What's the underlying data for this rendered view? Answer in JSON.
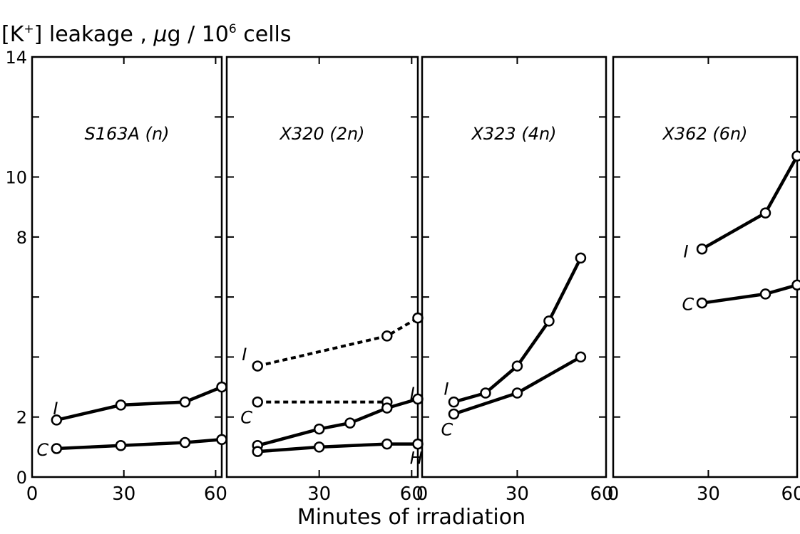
{
  "chart_data": {
    "type": "line",
    "title": "",
    "ylabel": {
      "prefix": "[K",
      "superscript": "+",
      "middle": "] leakage , ",
      "mu": "μ",
      "unit": "g / 10",
      "exp": "6",
      "suffix": " cells"
    },
    "xlabel": "Minutes of irradiation",
    "ylim": [
      0,
      14
    ],
    "yticks": [
      "0",
      "2",
      "",
      "",
      "8",
      "10",
      "",
      "14"
    ],
    "ytick_values": [
      0,
      2,
      4,
      6,
      8,
      10,
      12,
      14
    ],
    "grid": false,
    "axis_color": "#000000",
    "line_color": "#000000",
    "panels": [
      {
        "title": "S163A (n)",
        "xlim": [
          0,
          62
        ],
        "xticks": [
          "0",
          "30",
          "60"
        ],
        "xtick_values": [
          0,
          30,
          60
        ],
        "series": [
          {
            "name": "I",
            "style": "solid",
            "x": [
              8,
              29,
              50,
              62
            ],
            "y": [
              1.9,
              2.4,
              2.5,
              3.0
            ]
          },
          {
            "name": "C",
            "style": "solid",
            "x": [
              8,
              29,
              50,
              62
            ],
            "y": [
              0.95,
              1.05,
              1.15,
              1.25
            ]
          }
        ]
      },
      {
        "title": "X320 (2n)",
        "xlim": [
          0,
          62
        ],
        "xticks": [
          "",
          "30",
          "60"
        ],
        "xtick_values": [
          0,
          30,
          60
        ],
        "series": [
          {
            "name": "I",
            "style": "dashed",
            "x": [
              10,
              52,
              62
            ],
            "y": [
              3.7,
              4.7,
              5.3
            ]
          },
          {
            "name": "C",
            "style": "dashed",
            "x": [
              10,
              52
            ],
            "y": [
              2.5,
              2.5
            ]
          },
          {
            "name": "L",
            "style": "solid",
            "x": [
              10,
              30,
              40,
              52,
              62
            ],
            "y": [
              1.05,
              1.6,
              1.8,
              2.3,
              2.6
            ]
          },
          {
            "name": "H",
            "style": "solid",
            "x": [
              10,
              30,
              52,
              62
            ],
            "y": [
              0.85,
              1.0,
              1.1,
              1.1
            ]
          }
        ]
      },
      {
        "title": "X323 (4n)",
        "xlim": [
          0,
          58
        ],
        "xticks": [
          "0",
          "30",
          "60"
        ],
        "xtick_values": [
          0,
          30,
          60
        ],
        "series": [
          {
            "name": "I",
            "style": "solid",
            "x": [
              10,
              20,
              30,
              40,
              50
            ],
            "y": [
              2.5,
              2.8,
              3.7,
              5.2,
              7.3
            ]
          },
          {
            "name": "C",
            "style": "solid",
            "x": [
              10,
              30,
              50
            ],
            "y": [
              2.1,
              2.8,
              4.0
            ]
          }
        ]
      },
      {
        "title": "X362 (6n)",
        "xlim": [
          0,
          58
        ],
        "xticks": [
          "0",
          "30",
          "60"
        ],
        "xtick_values": [
          0,
          30,
          60
        ],
        "series": [
          {
            "name": "I",
            "style": "solid",
            "x": [
              28,
              48,
              58
            ],
            "y": [
              7.6,
              8.8,
              10.7
            ]
          },
          {
            "name": "C",
            "style": "solid",
            "x": [
              28,
              48,
              58
            ],
            "y": [
              5.8,
              6.1,
              6.4
            ]
          }
        ]
      }
    ]
  }
}
